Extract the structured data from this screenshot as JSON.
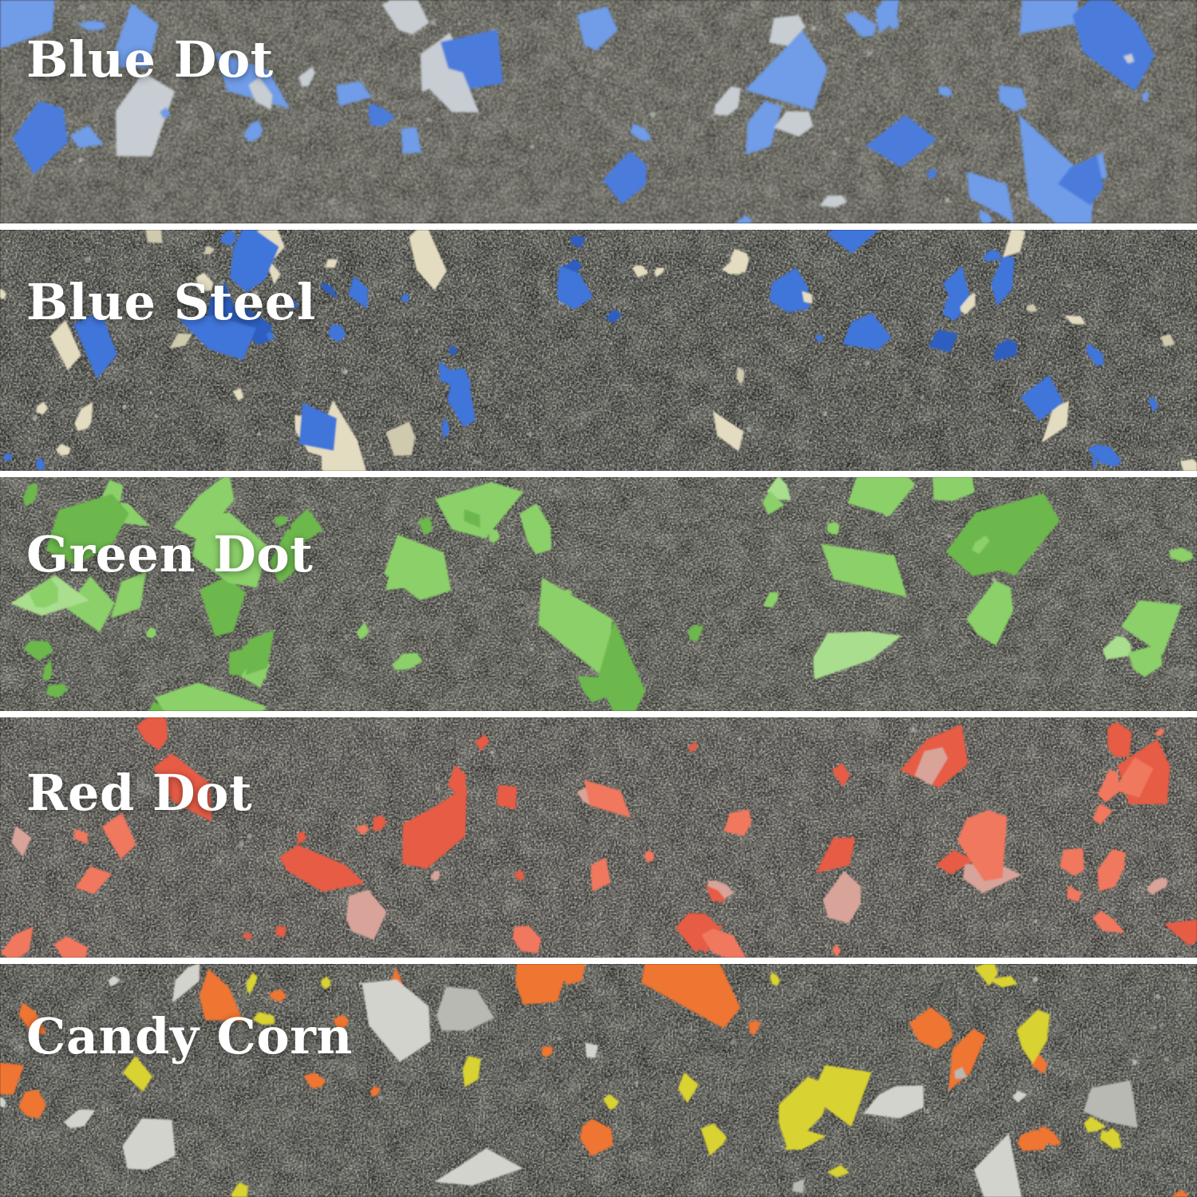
{
  "board": {
    "divider_color": "#ffffff",
    "label_color": "#ffffff",
    "texture": {
      "grain_colors": [
        "#8f8f88",
        "#b5b5ae",
        "#d8d8d1"
      ],
      "grain_count": 70
    },
    "bands": [
      {
        "label": "Blue Dot",
        "name": "blue-dot",
        "base_color": "#36362f",
        "seed": 11,
        "speckles": {
          "count": 44,
          "min_size": 8,
          "max_size": 62,
          "colors": [
            {
              "color": "#6f9ce8",
              "weight": 0.62
            },
            {
              "color": "#4c7cdc",
              "weight": 0.22
            },
            {
              "color": "#c7cdd2",
              "weight": 0.16
            }
          ]
        }
      },
      {
        "label": "Blue Steel",
        "name": "blue-steel",
        "base_color": "#21211e",
        "seed": 23,
        "speckles": {
          "count": 72,
          "min_size": 7,
          "max_size": 40,
          "colors": [
            {
              "color": "#3f74da",
              "weight": 0.42
            },
            {
              "color": "#2f5fc0",
              "weight": 0.12
            },
            {
              "color": "#e3dcc0",
              "weight": 0.34
            },
            {
              "color": "#cfc9ad",
              "weight": 0.12
            }
          ]
        }
      },
      {
        "label": "Green Dot",
        "name": "green-dot",
        "base_color": "#2b2b26",
        "seed": 37,
        "speckles": {
          "count": 56,
          "min_size": 8,
          "max_size": 48,
          "colors": [
            {
              "color": "#8bd069",
              "weight": 0.66
            },
            {
              "color": "#6db84e",
              "weight": 0.24
            },
            {
              "color": "#a8de8d",
              "weight": 0.1
            }
          ]
        }
      },
      {
        "label": "Red Dot",
        "name": "red-dot",
        "base_color": "#2c2a27",
        "seed": 51,
        "speckles": {
          "count": 54,
          "min_size": 7,
          "max_size": 42,
          "colors": [
            {
              "color": "#e65c44",
              "weight": 0.55
            },
            {
              "color": "#f0785e",
              "weight": 0.35
            },
            {
              "color": "#d8a49a",
              "weight": 0.1
            }
          ]
        }
      },
      {
        "label": "Candy Corn",
        "name": "candy-corn",
        "base_color": "#252522",
        "seed": 67,
        "speckles": {
          "count": 56,
          "min_size": 8,
          "max_size": 46,
          "colors": [
            {
              "color": "#ef7532",
              "weight": 0.33
            },
            {
              "color": "#d8d232",
              "weight": 0.38
            },
            {
              "color": "#d3d3cd",
              "weight": 0.21
            },
            {
              "color": "#b9b9b4",
              "weight": 0.08
            }
          ]
        }
      }
    ]
  }
}
